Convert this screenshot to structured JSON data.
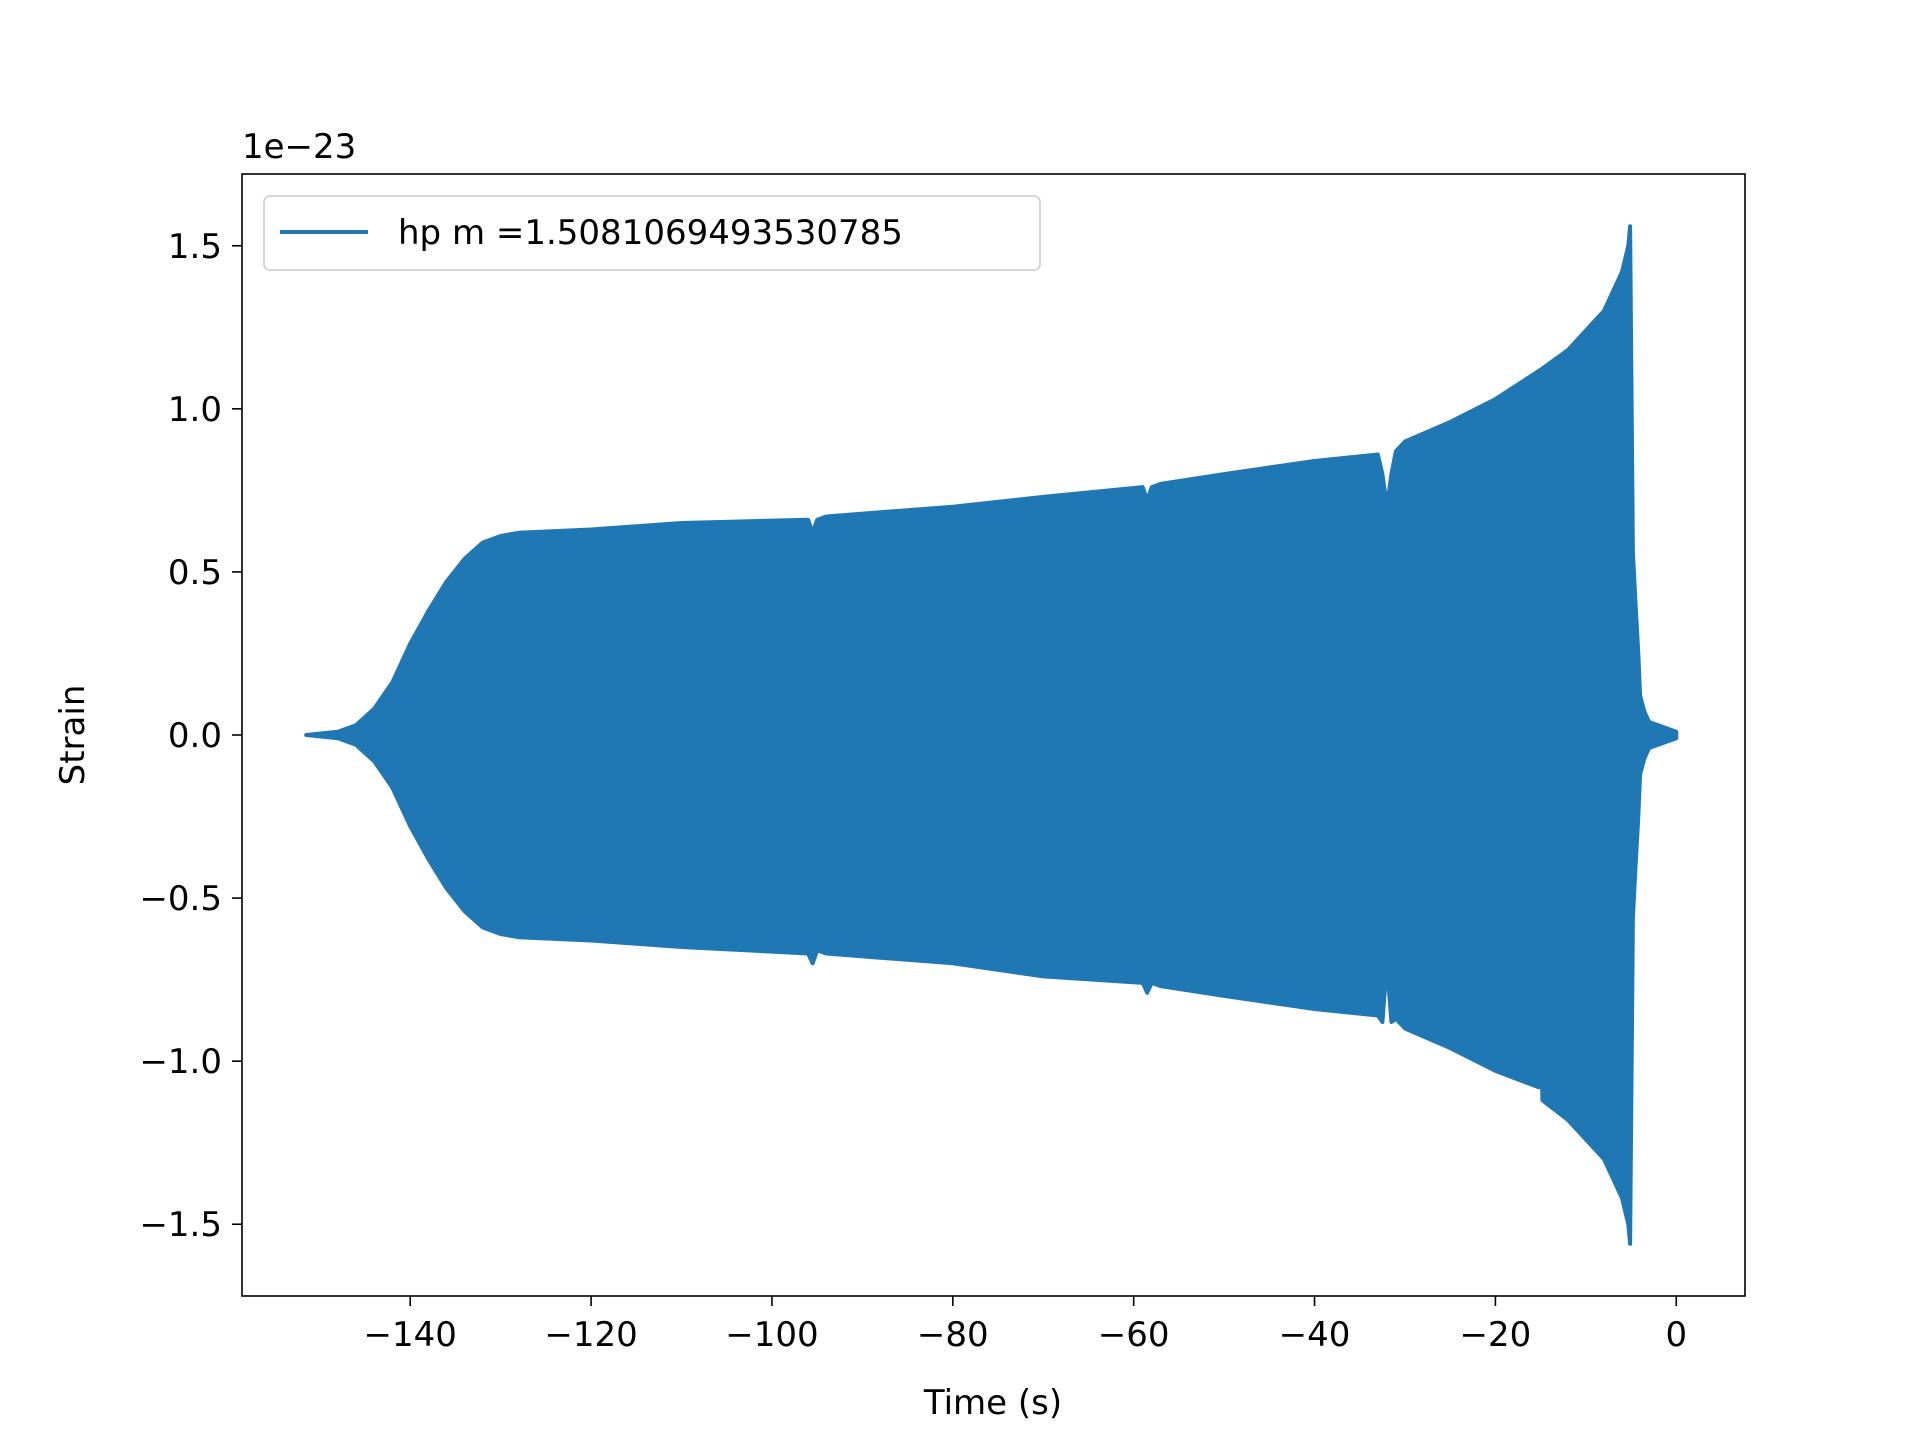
{
  "chart_data": {
    "type": "line",
    "title": "",
    "xlabel": "Time (s)",
    "ylabel": "Strain",
    "y_offset_label": "1e−23",
    "xlim": [
      -158.6,
      7.6
    ],
    "ylim": [
      -1.72,
      1.72
    ],
    "xticks": [
      -140,
      -120,
      -100,
      -80,
      -60,
      -40,
      -20,
      0
    ],
    "xtick_labels": [
      "−140",
      "−120",
      "−100",
      "−80",
      "−60",
      "−40",
      "−20",
      "0"
    ],
    "yticks": [
      -1.5,
      -1.0,
      -0.5,
      0.0,
      0.5,
      1.0,
      1.5
    ],
    "ytick_labels": [
      "−1.5",
      "−1.0",
      "−0.5",
      "0.0",
      "0.5",
      "1.0",
      "1.5"
    ],
    "grid": false,
    "legend_position": "upper-left",
    "series": [
      {
        "name": "hp m =1.5081069493530785",
        "color": "#1f77b4",
        "envelope_upper": {
          "x": [
            -151.5,
            -148,
            -146,
            -144,
            -142,
            -140,
            -138,
            -136,
            -134,
            -132,
            -130,
            -128,
            -120,
            -110,
            -96,
            -95.5,
            -95,
            -94,
            -80,
            -70,
            -59,
            -58.5,
            -58,
            -57,
            -50,
            -40,
            -33,
            -32.5,
            -32,
            -31.5,
            -31,
            -30,
            -25,
            -20,
            -15,
            -12,
            -10,
            -8,
            -7,
            -6,
            -5.3,
            -5.1,
            -4.8,
            -4.5,
            -4.2,
            -4.0,
            -3.5,
            -3,
            -2,
            -1,
            0
          ],
          "y": [
            0.0,
            0.01,
            0.03,
            0.08,
            0.16,
            0.28,
            0.38,
            0.47,
            0.54,
            0.59,
            0.61,
            0.62,
            0.63,
            0.65,
            0.66,
            0.62,
            0.66,
            0.67,
            0.7,
            0.73,
            0.76,
            0.72,
            0.76,
            0.77,
            0.8,
            0.84,
            0.86,
            0.8,
            0.7,
            0.8,
            0.87,
            0.9,
            0.96,
            1.03,
            1.12,
            1.18,
            1.24,
            1.3,
            1.36,
            1.42,
            1.5,
            1.56,
            0.56,
            0.4,
            0.25,
            0.12,
            0.07,
            0.04,
            0.03,
            0.02,
            0.01
          ]
        },
        "envelope_lower": {
          "x": [
            -151.5,
            -148,
            -146,
            -144,
            -142,
            -140,
            -138,
            -136,
            -134,
            -132,
            -130,
            -128,
            -120,
            -110,
            -96,
            -95.5,
            -95,
            -94,
            -80,
            -70,
            -59,
            -58.5,
            -58,
            -57,
            -50,
            -40,
            -33,
            -32.5,
            -32,
            -31.5,
            -31,
            -30,
            -25,
            -20,
            -15.2,
            -15.0,
            -14.8,
            -12,
            -10,
            -8,
            -7,
            -6,
            -5.3,
            -5.1,
            -4.8,
            -4.5,
            -4.2,
            -4.0,
            -3.5,
            -3,
            -2,
            -1,
            0
          ],
          "y": [
            0.0,
            -0.01,
            -0.03,
            -0.08,
            -0.16,
            -0.28,
            -0.38,
            -0.47,
            -0.54,
            -0.59,
            -0.61,
            -0.62,
            -0.63,
            -0.65,
            -0.67,
            -0.7,
            -0.66,
            -0.67,
            -0.7,
            -0.74,
            -0.76,
            -0.79,
            -0.76,
            -0.77,
            -0.8,
            -0.84,
            -0.86,
            -0.88,
            -0.7,
            -0.88,
            -0.87,
            -0.9,
            -0.96,
            -1.03,
            -1.08,
            -0.76,
            -1.12,
            -1.18,
            -1.24,
            -1.3,
            -1.36,
            -1.42,
            -1.5,
            -1.56,
            -0.56,
            -0.4,
            -0.25,
            -0.12,
            -0.07,
            -0.04,
            -0.03,
            -0.02,
            -0.01
          ]
        }
      }
    ]
  }
}
